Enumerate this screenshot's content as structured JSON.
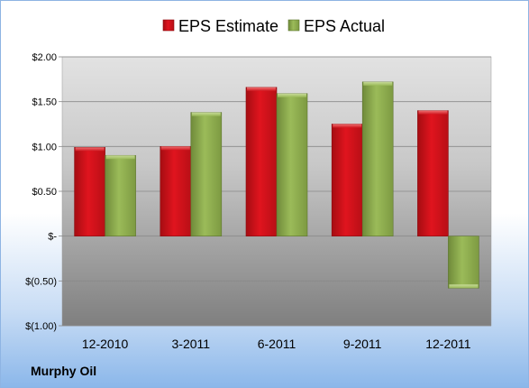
{
  "company": "Murphy Oil",
  "colors": {
    "estimate": "#e0141e",
    "actual": "#9bbb59"
  },
  "chart_data": {
    "type": "bar",
    "categories": [
      "12-2010",
      "3-2011",
      "6-2011",
      "9-2011",
      "12-2011"
    ],
    "series": [
      {
        "name": "EPS Estimate",
        "values": [
          0.99,
          1.0,
          1.66,
          1.25,
          1.4
        ]
      },
      {
        "name": "EPS Actual",
        "values": [
          0.9,
          1.38,
          1.59,
          1.72,
          -0.58
        ]
      }
    ],
    "y_ticks": [
      2.0,
      1.5,
      1.0,
      0.5,
      0,
      -0.5,
      -1.0
    ],
    "y_tick_labels": [
      "$2.00",
      "$1.50",
      "$1.00",
      "$0.50",
      "$-",
      "$(0.50)",
      "$(1.00)"
    ],
    "ylim": [
      -1.0,
      2.0
    ],
    "grid": true,
    "legend_position": "top"
  }
}
